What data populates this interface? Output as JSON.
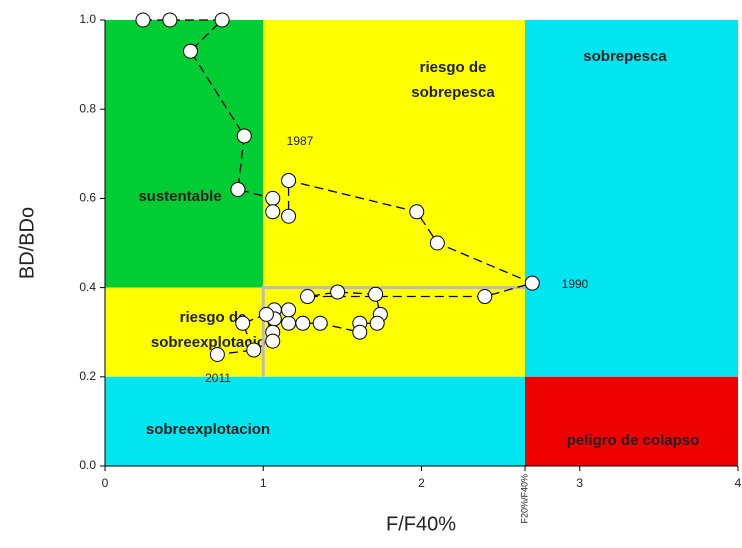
{
  "chart_data": {
    "type": "scatter",
    "xlabel": "F/F40%",
    "ylabel": "BD/BDo",
    "xlim": [
      0,
      4
    ],
    "ylim": [
      0,
      1.0
    ],
    "xticks": [
      0,
      1,
      2,
      {
        "value": 2.654,
        "label": "F20%/F40%"
      },
      3,
      4
    ],
    "yticks": [
      {
        "value": 0,
        "label": "0.0"
      },
      0.2,
      0.4,
      0.6,
      0.8,
      {
        "value": 1,
        "label": "1.0"
      }
    ],
    "zones": [
      {
        "label": [
          "sustentable"
        ],
        "color": "#00cc33",
        "x": [
          0,
          1
        ],
        "y": [
          0.4,
          1.0
        ]
      },
      {
        "label": [
          "riesgo de",
          "sobrepesca"
        ],
        "color": "#ffff00",
        "x": [
          1,
          2.654
        ],
        "y": [
          0.4,
          1.0
        ]
      },
      {
        "label": [
          "sobrepesca"
        ],
        "color": "#00e5f0",
        "x": [
          2.654,
          4
        ],
        "y": [
          0.2,
          1.0
        ]
      },
      {
        "label": [
          "riesgo de",
          "sobreexplotacion"
        ],
        "color": "#ffff00",
        "x": [
          0,
          2.654
        ],
        "y": [
          0.2,
          0.4
        ]
      },
      {
        "label": [
          "sobreexplotacion"
        ],
        "color": "#00e5f0",
        "x": [
          0,
          2.654
        ],
        "y": [
          0,
          0.2
        ]
      },
      {
        "label": [
          "peligro de colapso"
        ],
        "color": "#ee0000",
        "x": [
          2.654,
          4
        ],
        "y": [
          0,
          0.2
        ]
      }
    ],
    "x": [
      0.24,
      0.41,
      0.74,
      0.54,
      0.88,
      0.84,
      1.06,
      1.06,
      1.16,
      1.16,
      1.97,
      2.1,
      2.7,
      2.4,
      1.28,
      1.47,
      1.71,
      1.74,
      1.72,
      1.61,
      1.61,
      1.36,
      1.25,
      1.16,
      1.16,
      1.07,
      1.07,
      1.06,
      1.06,
      1.02,
      0.87,
      0.94,
      0.71
    ],
    "values": [
      1.0,
      1.0,
      1.0,
      0.93,
      0.74,
      0.62,
      0.6,
      0.57,
      0.56,
      0.64,
      0.57,
      0.5,
      0.41,
      0.38,
      0.38,
      0.39,
      0.385,
      0.34,
      0.32,
      0.32,
      0.3,
      0.32,
      0.32,
      0.32,
      0.35,
      0.35,
      0.33,
      0.3,
      0.28,
      0.34,
      0.32,
      0.26,
      0.25
    ],
    "annotations": [
      "1987",
      "1990",
      "2011"
    ]
  }
}
